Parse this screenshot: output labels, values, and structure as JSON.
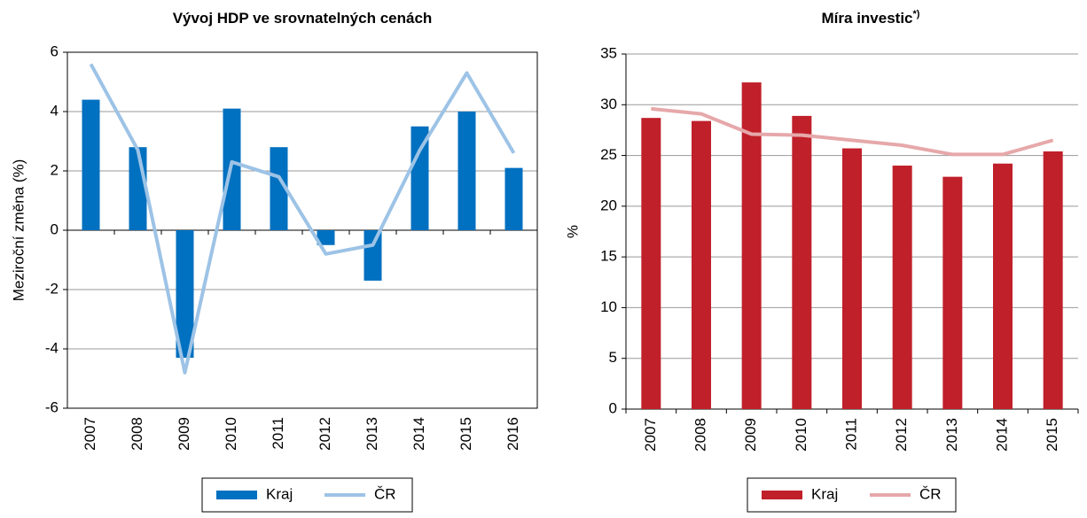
{
  "chart_data": [
    {
      "type": "bar",
      "title": "Vývoj HDP ve srovnatelných cenách",
      "y_label": "Meziroční změna (%)",
      "categories": [
        "2007",
        "2008",
        "2009",
        "2010",
        "2011",
        "2012",
        "2013",
        "2014",
        "2015",
        "2016"
      ],
      "series": [
        {
          "name": "Kraj",
          "type": "bar",
          "color": "#0070c0",
          "values": [
            4.4,
            2.8,
            -4.3,
            4.1,
            2.8,
            -0.5,
            -1.7,
            3.5,
            4.0,
            2.1
          ]
        },
        {
          "name": "ČR",
          "type": "line",
          "color": "#9dc3e6",
          "values": [
            5.6,
            2.7,
            -4.8,
            2.3,
            1.8,
            -0.8,
            -0.5,
            2.7,
            5.3,
            2.6
          ]
        }
      ],
      "ylim": [
        -6,
        6
      ],
      "yticks": [
        -6,
        -4,
        -2,
        0,
        2,
        4,
        6
      ],
      "grid": true,
      "legend": "bottom"
    },
    {
      "type": "bar",
      "title": "Míra investic",
      "title_note": "*)",
      "y_label": "%",
      "categories": [
        "2007",
        "2008",
        "2009",
        "2010",
        "2011",
        "2012",
        "2013",
        "2014",
        "2015"
      ],
      "series": [
        {
          "name": "Kraj",
          "type": "bar",
          "color": "#c0202a",
          "values": [
            28.7,
            28.4,
            32.2,
            28.9,
            25.7,
            24.0,
            22.9,
            24.2,
            25.4
          ]
        },
        {
          "name": "ČR",
          "type": "line",
          "color": "#e6a8aa",
          "values": [
            29.6,
            29.1,
            27.1,
            27.0,
            26.5,
            26.0,
            25.1,
            25.1,
            26.5
          ]
        }
      ],
      "ylim": [
        0,
        35
      ],
      "yticks": [
        0,
        5,
        10,
        15,
        20,
        25,
        30,
        35
      ],
      "grid": true,
      "legend": "bottom"
    }
  ]
}
